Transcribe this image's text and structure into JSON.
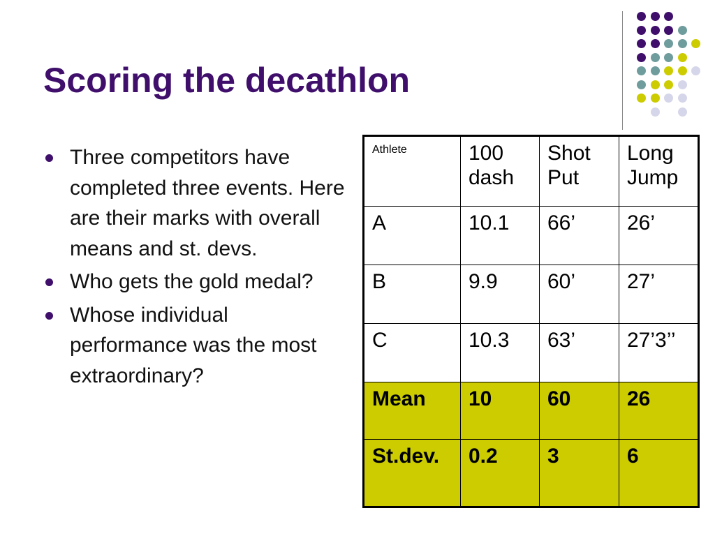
{
  "slide": {
    "title": "Scoring the decathlon",
    "accent_color": "#3f0f6b",
    "highlight_color": "#cccc00"
  },
  "bullets": [
    "Three competitors have completed three events.  Here are their marks with overall means and st. devs.",
    "Who gets the gold medal?",
    "Whose individual performance was the most extraordinary?"
  ],
  "table": {
    "headers": [
      "Athlete",
      "100 dash",
      "Shot Put",
      "Long Jump"
    ],
    "rows": [
      [
        "A",
        "10.1",
        "66’",
        "26’"
      ],
      [
        "B",
        "9.9",
        "60’",
        "27’"
      ],
      [
        "C",
        "10.3",
        "63’",
        "27’3’’"
      ]
    ],
    "mean_row": [
      "Mean",
      "10",
      "60",
      "26"
    ],
    "stdev_row": [
      "St.dev.",
      "0.2",
      "3",
      "6"
    ]
  },
  "decoration": {
    "palette": {
      "purple": "#3f0f6b",
      "teal": "#6f9c9c",
      "yellow": "#cccc00",
      "lavender": "#d6d6ea"
    },
    "dot_grid": [
      [
        "purple",
        "purple",
        "purple",
        "",
        ""
      ],
      [
        "purple",
        "purple",
        "purple",
        "teal",
        ""
      ],
      [
        "purple",
        "purple",
        "teal",
        "teal",
        "yellow"
      ],
      [
        "purple",
        "teal",
        "teal",
        "yellow",
        ""
      ],
      [
        "teal",
        "teal",
        "yellow",
        "yellow",
        "lavender"
      ],
      [
        "teal",
        "yellow",
        "yellow",
        "lavender",
        ""
      ],
      [
        "yellow",
        "yellow",
        "lavender",
        "lavender",
        ""
      ],
      [
        "",
        "lavender",
        "",
        "lavender",
        ""
      ]
    ]
  }
}
